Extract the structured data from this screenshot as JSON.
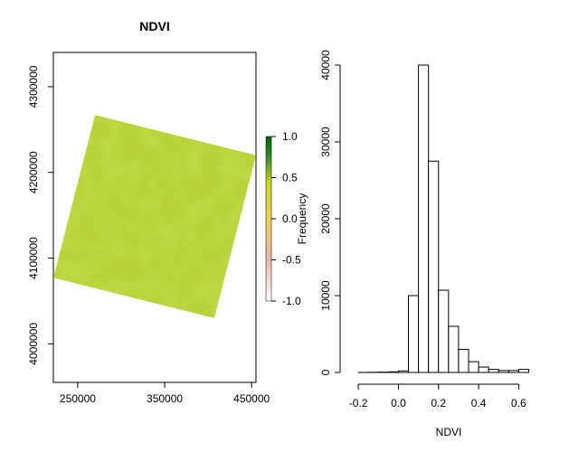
{
  "chart_data": [
    {
      "type": "heatmap",
      "title": "NDVI",
      "xlabel": "",
      "ylabel": "",
      "xlim": [
        222000,
        455000
      ],
      "ylim": [
        3955000,
        4340000
      ],
      "x_ticks": [
        250000,
        350000,
        450000
      ],
      "y_ticks": [
        4000000,
        4100000,
        4200000,
        4300000
      ],
      "x_tick_labels": [
        "250000",
        "350000",
        "450000"
      ],
      "y_tick_labels": [
        "4000000",
        "4100000",
        "4200000",
        "4300000"
      ],
      "raster_footprint": [
        {
          "x": 270000,
          "y": 4267000
        },
        {
          "x": 455000,
          "y": 4220000
        },
        {
          "x": 407000,
          "y": 4030000
        },
        {
          "x": 222000,
          "y": 4077000
        }
      ],
      "colorbar": {
        "range": [
          -1,
          1
        ],
        "ticks": [
          1.0,
          0.5,
          0.0,
          -0.5,
          -1.0
        ],
        "tick_labels": [
          "1.0",
          "0.5",
          "0.0",
          "-0.5",
          "-1.0"
        ],
        "colors": [
          "#ffffff",
          "#e8b8a8",
          "#f0d060",
          "#c8d820",
          "#2e8b2e",
          "#006400"
        ]
      },
      "dominant_color": "#b8d43a",
      "grid": false
    },
    {
      "type": "bar",
      "subtype": "histogram",
      "title": "",
      "xlabel": "NDVI",
      "ylabel": "Frequency",
      "xlim": [
        -0.25,
        0.72
      ],
      "ylim": [
        0,
        40000
      ],
      "x_ticks": [
        -0.2,
        0.0,
        0.2,
        0.4,
        0.6
      ],
      "x_tick_labels": [
        "-0.2",
        "0.0",
        "0.2",
        "0.4",
        "0.6"
      ],
      "y_ticks": [
        0,
        10000,
        20000,
        30000,
        40000
      ],
      "y_tick_labels": [
        "0",
        "10000",
        "20000",
        "30000",
        "40000"
      ],
      "bin_edges": [
        -0.2,
        -0.15,
        -0.1,
        -0.05,
        0.0,
        0.05,
        0.1,
        0.15,
        0.2,
        0.25,
        0.3,
        0.35,
        0.4,
        0.45,
        0.5,
        0.55,
        0.6,
        0.65
      ],
      "counts": [
        5,
        20,
        40,
        80,
        200,
        10000,
        40000,
        27500,
        10700,
        6000,
        3000,
        1400,
        700,
        400,
        250,
        250,
        400
      ],
      "fill": "#ffffff",
      "grid": false
    }
  ]
}
